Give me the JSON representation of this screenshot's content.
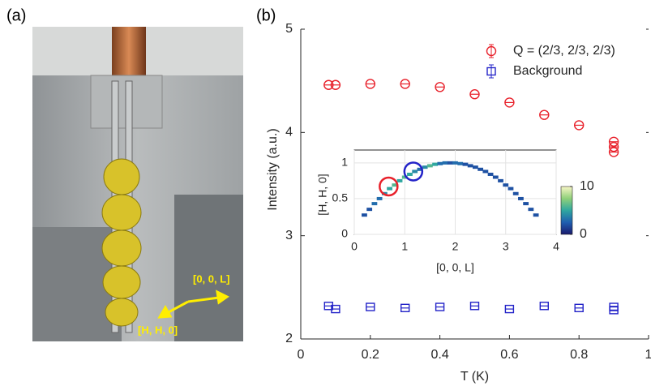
{
  "panel_a": {
    "label": "(a)",
    "arrow_labels": [
      "[0, 0, L]",
      "[H, H, 0]"
    ]
  },
  "panel_b": {
    "label": "(b)"
  },
  "chart_data": [
    {
      "type": "scatter",
      "x_label": "T (K)",
      "y_label": "Intensity (a.u.)",
      "xlim": [
        0,
        1
      ],
      "xticks": [
        0,
        0.2,
        0.4,
        0.6,
        0.8,
        1
      ],
      "ylim": [
        2,
        5
      ],
      "yticks": [
        2,
        3,
        4,
        5
      ],
      "legend": "top-right",
      "series": [
        {
          "name": "Q = (2/3, 2/3, 2/3)",
          "color": "#e8202a",
          "marker": "circle",
          "x": [
            0.08,
            0.1,
            0.2,
            0.3,
            0.4,
            0.5,
            0.6,
            0.7,
            0.8,
            0.9,
            0.9,
            0.9
          ],
          "y": [
            4.46,
            4.46,
            4.47,
            4.47,
            4.44,
            4.37,
            4.29,
            4.17,
            4.07,
            3.91,
            3.86,
            3.81
          ]
        },
        {
          "name": "Background",
          "color": "#2323c8",
          "marker": "square",
          "x": [
            0.08,
            0.1,
            0.2,
            0.3,
            0.4,
            0.5,
            0.6,
            0.7,
            0.8,
            0.9,
            0.9
          ],
          "y": [
            2.32,
            2.29,
            2.31,
            2.3,
            2.31,
            2.32,
            2.29,
            2.32,
            2.3,
            2.31,
            2.28
          ]
        }
      ]
    },
    {
      "type": "heatmap-scatter",
      "x_label": "[0, 0, L]",
      "y_label": "[H, H, 0]",
      "xlim": [
        0,
        4
      ],
      "xticks": [
        0,
        1,
        2,
        3,
        4
      ],
      "ylim": [
        0,
        1.18
      ],
      "yticks": [
        0,
        0.5,
        1
      ],
      "x": [
        0.2,
        0.3,
        0.4,
        0.5,
        0.6,
        0.7,
        0.8,
        0.9,
        1.0,
        1.1,
        1.2,
        1.3,
        1.4,
        1.5,
        1.6,
        1.7,
        1.8,
        1.9,
        2.0,
        2.1,
        2.2,
        2.3,
        2.4,
        2.5,
        2.6,
        2.7,
        2.8,
        2.9,
        3.0,
        3.1,
        3.2,
        3.3,
        3.4,
        3.5,
        3.6
      ],
      "y": [
        0.27,
        0.35,
        0.43,
        0.5,
        0.57,
        0.64,
        0.69,
        0.75,
        0.8,
        0.84,
        0.88,
        0.91,
        0.94,
        0.96,
        0.98,
        0.99,
        1.0,
        1.0,
        1.0,
        0.99,
        0.98,
        0.96,
        0.94,
        0.91,
        0.88,
        0.84,
        0.8,
        0.75,
        0.69,
        0.64,
        0.57,
        0.5,
        0.43,
        0.35,
        0.27
      ],
      "values": [
        2,
        2,
        3,
        3,
        4,
        5,
        6,
        5,
        6,
        5,
        4,
        3,
        4,
        6,
        5,
        3,
        3,
        2,
        3,
        3,
        2,
        2,
        2,
        2,
        2,
        2,
        2,
        2,
        2,
        2,
        2,
        2,
        2,
        2,
        2
      ],
      "clim": [
        0,
        10
      ],
      "cticks": [
        0,
        10
      ],
      "colormap": [
        "#1a1a6e",
        "#1f5fb0",
        "#2fa7a0",
        "#8fd07a",
        "#f8f6c6"
      ],
      "highlights": [
        {
          "x": 0.68,
          "y": 0.67,
          "color": "#e8202a"
        },
        {
          "x": 1.17,
          "y": 0.88,
          "color": "#2323c8"
        }
      ]
    }
  ]
}
